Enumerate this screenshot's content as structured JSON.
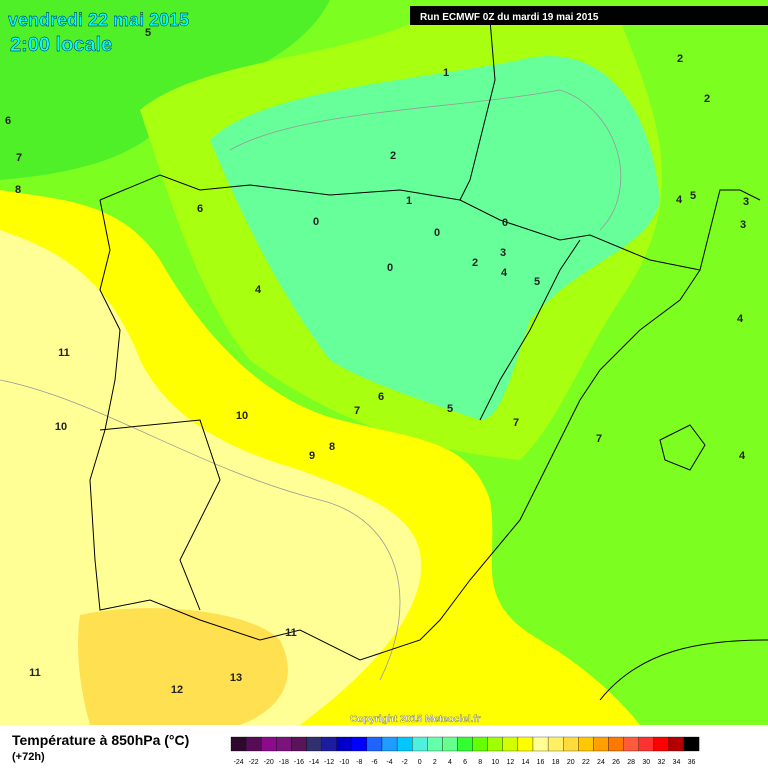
{
  "header": {
    "title": "vendredi 22 mai 2015",
    "subtitle": "2:00 locale",
    "run": "Run ECMWF 0Z du mardi 19 mai 2015"
  },
  "map": {
    "contour_labels": [
      5,
      1,
      2,
      2,
      6,
      7,
      2,
      8,
      1,
      6,
      4,
      5,
      3,
      3,
      0,
      0,
      0,
      3,
      2,
      0,
      4,
      5,
      4,
      4,
      11,
      10,
      7,
      6,
      5,
      7,
      7,
      10,
      8,
      9,
      4,
      11,
      11,
      12,
      13
    ],
    "copyright": "Copyright 2015 Meteociel.fr"
  },
  "footer": {
    "title": "Température à 850hPa (°C)",
    "lead": "(+72h)"
  },
  "legend": {
    "labels": [
      -24,
      -22,
      -20,
      -18,
      -16,
      -14,
      -12,
      -10,
      -8,
      -6,
      -4,
      -2,
      0,
      2,
      4,
      6,
      8,
      10,
      12,
      14,
      16,
      18,
      20,
      22,
      24,
      26,
      28,
      30,
      32,
      34,
      36
    ],
    "colors": [
      "#2d0a2d",
      "#560c56",
      "#8c0a8c",
      "#7a147a",
      "#5a145a",
      "#30306e",
      "#1c1ca0",
      "#0000c8",
      "#0000ff",
      "#1e64ff",
      "#1e9cff",
      "#00c8ff",
      "#50f0dc",
      "#64ffaa",
      "#64ff8c",
      "#32ff32",
      "#64ff00",
      "#a0ff00",
      "#d2ff00",
      "#ffff00",
      "#ffff96",
      "#fff064",
      "#ffdc3c",
      "#ffc800",
      "#ffa000",
      "#ff7800",
      "#ff5a3c",
      "#ff3232",
      "#ff0000",
      "#b40000",
      "#000000"
    ]
  }
}
